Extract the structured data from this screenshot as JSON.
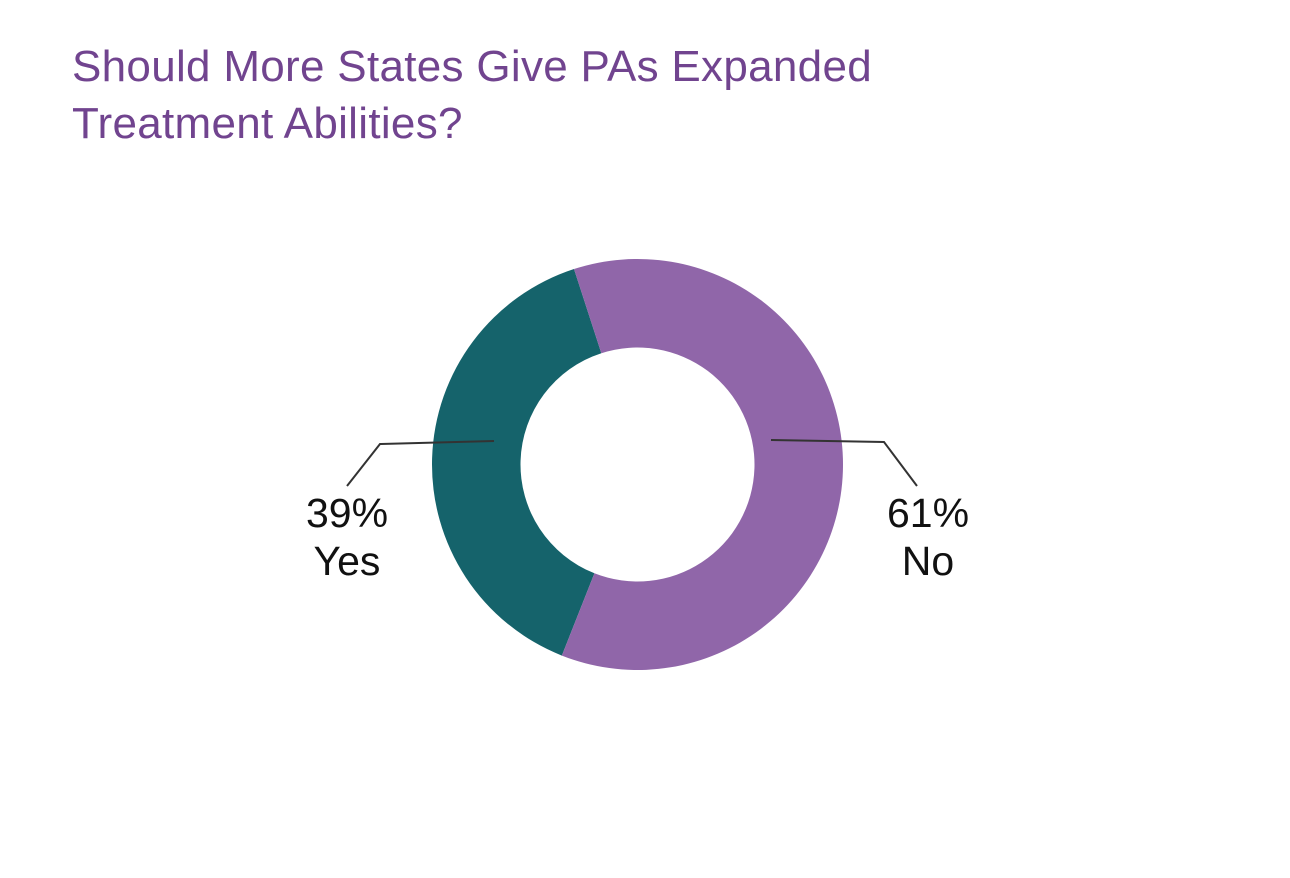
{
  "title": {
    "line1": "Should More States Give PAs Expanded",
    "line2": "Treatment Abilities?"
  },
  "chart_data": {
    "type": "pie",
    "variant": "donut",
    "title": "Should More States Give PAs Expanded Treatment Abilities?",
    "slices": [
      {
        "label": "Yes",
        "value": 39,
        "value_label": "39%",
        "color": "#15636B"
      },
      {
        "label": "No",
        "value": 61,
        "value_label": "61%",
        "color": "#9066A9"
      }
    ],
    "legend": "none",
    "title_color": "#71448F"
  }
}
